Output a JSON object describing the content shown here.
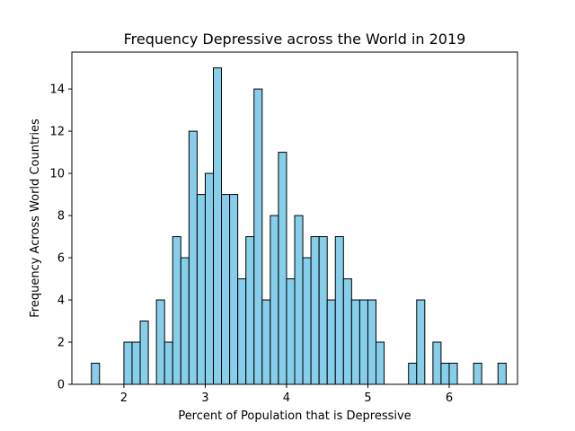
{
  "chart_data": {
    "type": "bar",
    "subtype": "histogram",
    "title": "Frequency Depressive across the World in 2019",
    "xlabel": "Percent of Population that is Depressive",
    "ylabel": "Frequency Across World Countries",
    "xlim": [
      1.36,
      6.84
    ],
    "ylim": [
      0,
      15.75
    ],
    "xticks": [
      2,
      3,
      4,
      5,
      6
    ],
    "yticks": [
      0,
      2,
      4,
      6,
      8,
      10,
      12,
      14
    ],
    "bin_start": 1.6,
    "bin_width": 0.1,
    "values": [
      1,
      0,
      0,
      0,
      2,
      2,
      3,
      0,
      4,
      2,
      7,
      6,
      12,
      9,
      10,
      15,
      9,
      9,
      5,
      7,
      14,
      4,
      8,
      11,
      5,
      8,
      6,
      7,
      7,
      4,
      7,
      5,
      4,
      4,
      4,
      2,
      0,
      0,
      0,
      1,
      4,
      0,
      2,
      1,
      1,
      0,
      0,
      1,
      0,
      0,
      1
    ],
    "bar_color": "#87ceeb",
    "edge_color": "#000000",
    "grid": false,
    "legend": "none"
  }
}
